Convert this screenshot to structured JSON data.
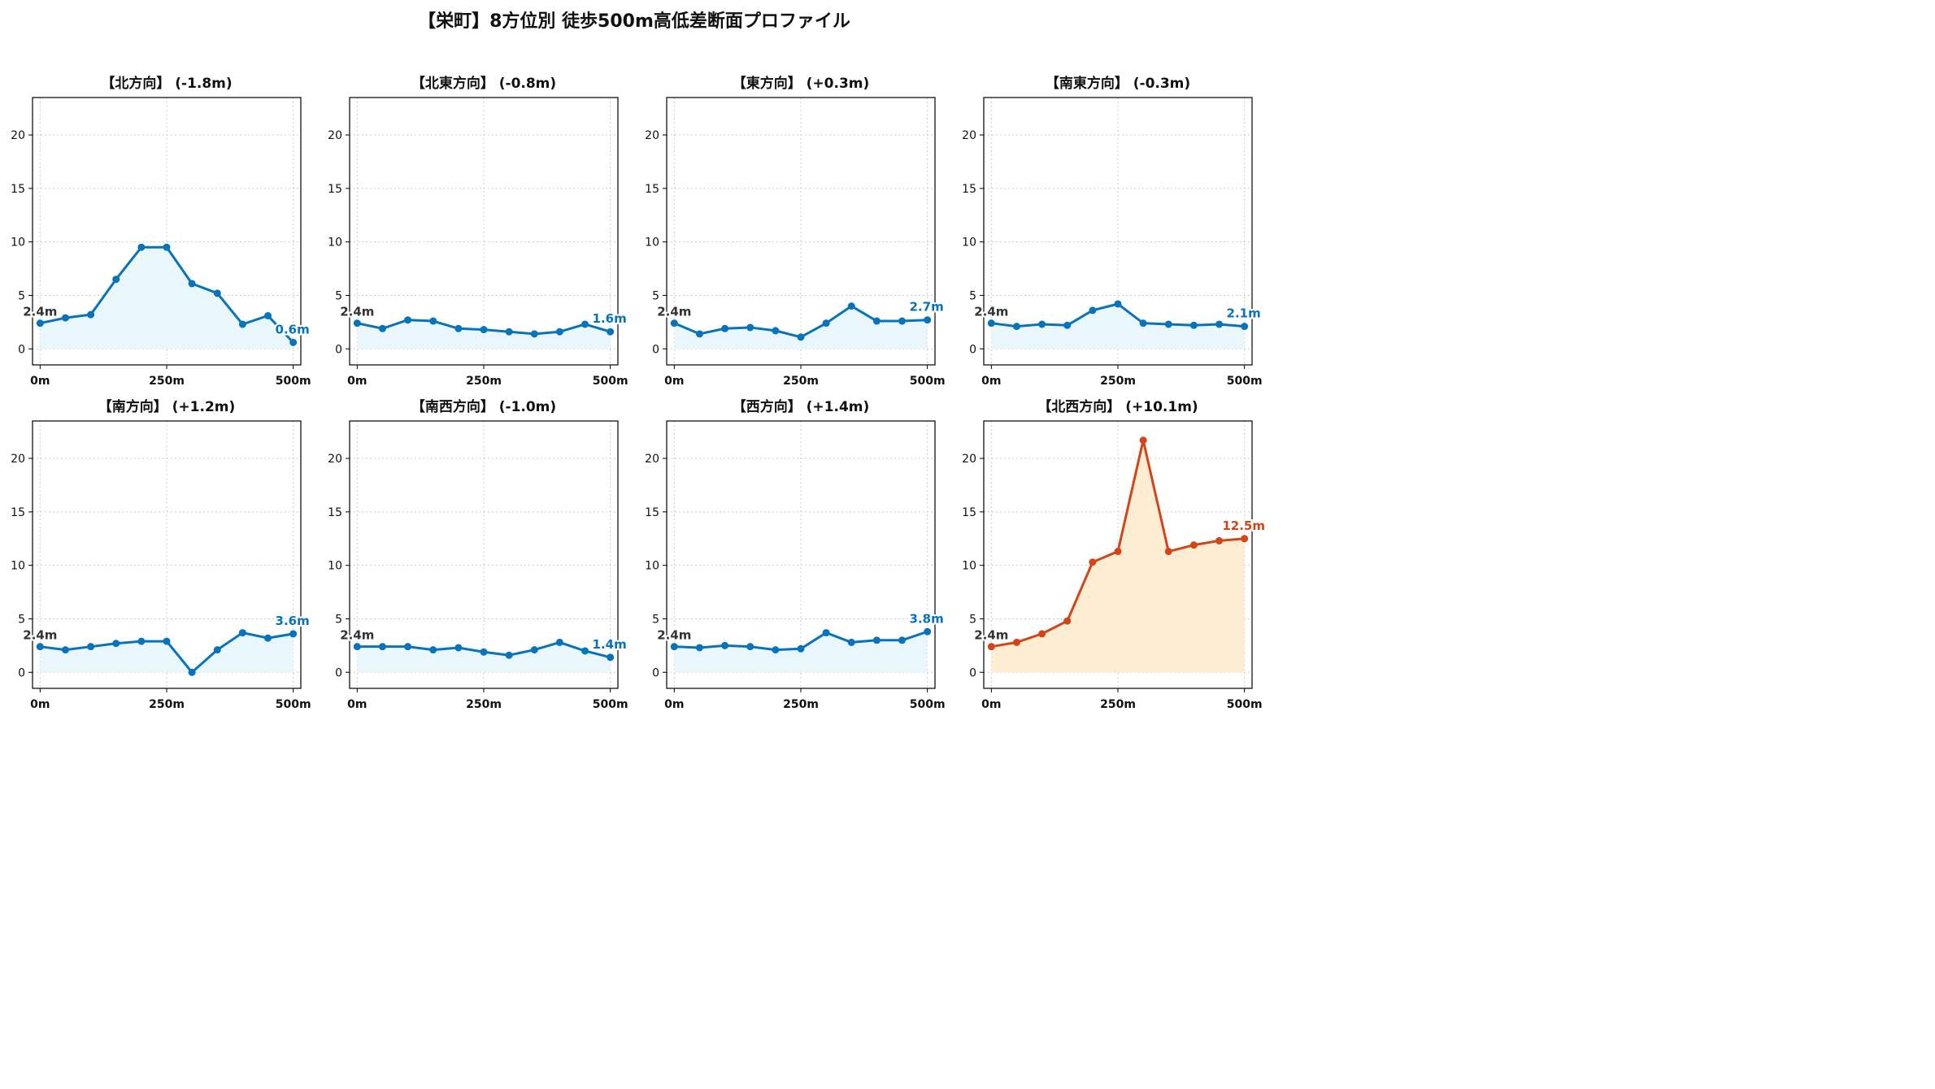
{
  "figure": {
    "title": "【栄町】8方位別 徒歩500m高低差断面プロファイル"
  },
  "colors": {
    "normal_line": "#0873b9",
    "normal_fill": "#e9f6fb",
    "highlight_line": "#d44419",
    "highlight_fill": "#fdedd3",
    "grid": "#cccccc",
    "start_label": "#333333"
  },
  "chart_data": [
    {
      "type": "line",
      "title": "【北方向】 (-1.8m)",
      "x": [
        0,
        50,
        100,
        150,
        200,
        250,
        300,
        350,
        400,
        450,
        500
      ],
      "values": [
        2.4,
        2.9,
        3.2,
        6.5,
        9.5,
        9.5,
        6.1,
        5.2,
        2.3,
        3.1,
        0.6
      ],
      "xticks": [
        "0m",
        "250m",
        "500m"
      ],
      "yticks": [
        "0",
        "5",
        "10",
        "15",
        "20"
      ],
      "ylim": [
        -1.5,
        23.5
      ],
      "start_label": "2.4m",
      "end_label": "0.6m",
      "highlight": false,
      "grid": true
    },
    {
      "type": "line",
      "title": "【北東方向】 (-0.8m)",
      "x": [
        0,
        50,
        100,
        150,
        200,
        250,
        300,
        350,
        400,
        450,
        500
      ],
      "values": [
        2.4,
        1.9,
        2.7,
        2.6,
        1.9,
        1.8,
        1.6,
        1.4,
        1.6,
        2.3,
        1.6
      ],
      "xticks": [
        "0m",
        "250m",
        "500m"
      ],
      "yticks": [
        "0",
        "5",
        "10",
        "15",
        "20"
      ],
      "ylim": [
        -1.5,
        23.5
      ],
      "start_label": "2.4m",
      "end_label": "1.6m",
      "highlight": false,
      "grid": true
    },
    {
      "type": "line",
      "title": "【東方向】 (+0.3m)",
      "x": [
        0,
        50,
        100,
        150,
        200,
        250,
        300,
        350,
        400,
        450,
        500
      ],
      "values": [
        2.4,
        1.4,
        1.9,
        2.0,
        1.7,
        1.1,
        2.4,
        4.0,
        2.6,
        2.6,
        2.7
      ],
      "xticks": [
        "0m",
        "250m",
        "500m"
      ],
      "yticks": [
        "0",
        "5",
        "10",
        "15",
        "20"
      ],
      "ylim": [
        -1.5,
        23.5
      ],
      "start_label": "2.4m",
      "end_label": "2.7m",
      "highlight": false,
      "grid": true
    },
    {
      "type": "line",
      "title": "【南東方向】 (-0.3m)",
      "x": [
        0,
        50,
        100,
        150,
        200,
        250,
        300,
        350,
        400,
        450,
        500
      ],
      "values": [
        2.4,
        2.1,
        2.3,
        2.2,
        3.6,
        4.2,
        2.4,
        2.3,
        2.2,
        2.3,
        2.1
      ],
      "xticks": [
        "0m",
        "250m",
        "500m"
      ],
      "yticks": [
        "0",
        "5",
        "10",
        "15",
        "20"
      ],
      "ylim": [
        -1.5,
        23.5
      ],
      "start_label": "2.4m",
      "end_label": "2.1m",
      "highlight": false,
      "grid": true
    },
    {
      "type": "line",
      "title": "【南方向】 (+1.2m)",
      "x": [
        0,
        50,
        100,
        150,
        200,
        250,
        300,
        350,
        400,
        450,
        500
      ],
      "values": [
        2.4,
        2.1,
        2.4,
        2.7,
        2.9,
        2.9,
        0.0,
        2.1,
        3.7,
        3.2,
        3.6
      ],
      "xticks": [
        "0m",
        "250m",
        "500m"
      ],
      "yticks": [
        "0",
        "5",
        "10",
        "15",
        "20"
      ],
      "ylim": [
        -1.5,
        23.5
      ],
      "start_label": "2.4m",
      "end_label": "3.6m",
      "highlight": false,
      "grid": true
    },
    {
      "type": "line",
      "title": "【南西方向】 (-1.0m)",
      "x": [
        0,
        50,
        100,
        150,
        200,
        250,
        300,
        350,
        400,
        450,
        500
      ],
      "values": [
        2.4,
        2.4,
        2.4,
        2.1,
        2.3,
        1.9,
        1.6,
        2.1,
        2.8,
        2.0,
        1.4
      ],
      "xticks": [
        "0m",
        "250m",
        "500m"
      ],
      "yticks": [
        "0",
        "5",
        "10",
        "15",
        "20"
      ],
      "ylim": [
        -1.5,
        23.5
      ],
      "start_label": "2.4m",
      "end_label": "1.4m",
      "highlight": false,
      "grid": true
    },
    {
      "type": "line",
      "title": "【西方向】 (+1.4m)",
      "x": [
        0,
        50,
        100,
        150,
        200,
        250,
        300,
        350,
        400,
        450,
        500
      ],
      "values": [
        2.4,
        2.3,
        2.5,
        2.4,
        2.1,
        2.2,
        3.7,
        2.8,
        3.0,
        3.0,
        3.8
      ],
      "xticks": [
        "0m",
        "250m",
        "500m"
      ],
      "yticks": [
        "0",
        "5",
        "10",
        "15",
        "20"
      ],
      "ylim": [
        -1.5,
        23.5
      ],
      "start_label": "2.4m",
      "end_label": "3.8m",
      "highlight": false,
      "grid": true
    },
    {
      "type": "line",
      "title": "【北西方向】 (+10.1m)",
      "x": [
        0,
        50,
        100,
        150,
        200,
        250,
        300,
        350,
        400,
        450,
        500
      ],
      "values": [
        2.4,
        2.8,
        3.6,
        4.8,
        10.3,
        11.3,
        21.7,
        11.3,
        11.9,
        12.3,
        12.5
      ],
      "xticks": [
        "0m",
        "250m",
        "500m"
      ],
      "yticks": [
        "0",
        "5",
        "10",
        "15",
        "20"
      ],
      "ylim": [
        -1.5,
        23.5
      ],
      "start_label": "2.4m",
      "end_label": "12.5m",
      "highlight": true,
      "grid": true
    }
  ]
}
